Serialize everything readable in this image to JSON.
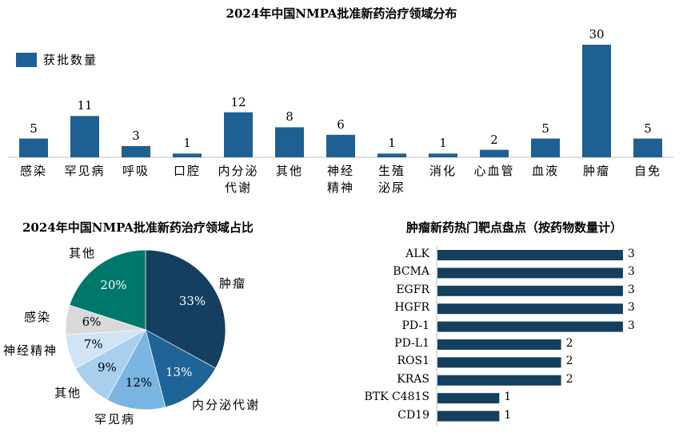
{
  "chart_data": [
    {
      "type": "bar",
      "title": "2024年中国NMPA批准新药治疗领域分布",
      "legend": "获批数量",
      "categories": [
        "感染",
        "罕见病",
        "呼吸",
        "口腔",
        "内分泌代谢",
        "其他",
        "神经精神",
        "生殖泌尿",
        "消化",
        "心血管",
        "血液",
        "肿瘤",
        "自免"
      ],
      "category_lines": [
        [
          "感染"
        ],
        [
          "罕见病"
        ],
        [
          "呼吸"
        ],
        [
          "口腔"
        ],
        [
          "内分泌",
          "代谢"
        ],
        [
          "其他"
        ],
        [
          "神经",
          "精神"
        ],
        [
          "生殖",
          "泌尿"
        ],
        [
          "消化"
        ],
        [
          "心血管"
        ],
        [
          "血液"
        ],
        [
          "肿瘤"
        ],
        [
          "自免"
        ]
      ],
      "values": [
        5,
        11,
        3,
        1,
        12,
        8,
        6,
        1,
        1,
        2,
        5,
        30,
        5
      ],
      "color": "#1f6093"
    },
    {
      "type": "pie",
      "title": "2024年中国NMPA批准新药治疗领域占比",
      "slices": [
        {
          "label": "肿瘤",
          "value": 33,
          "text": "33%",
          "color": "#153f61",
          "textColor": "#fff"
        },
        {
          "label": "内分泌代谢",
          "value": 13,
          "text": "13%",
          "color": "#1f6496",
          "textColor": "#fff"
        },
        {
          "label": "罕见病",
          "value": 12,
          "text": "12%",
          "color": "#7ab4e0",
          "textColor": "#000"
        },
        {
          "label": "其他",
          "value": 9,
          "text": "9%",
          "color": "#a9cfee",
          "textColor": "#000"
        },
        {
          "label": "神经精神",
          "value": 7,
          "text": "7%",
          "color": "#d0e4f5",
          "textColor": "#000"
        },
        {
          "label": "感染",
          "value": 6,
          "text": "6%",
          "color": "#d9d9d9",
          "textColor": "#000"
        },
        {
          "label": "其他",
          "value": 20,
          "text": "20%",
          "color": "#00776b",
          "textColor": "#fff"
        }
      ]
    },
    {
      "type": "bar",
      "orientation": "horizontal",
      "title": "肿瘤新药热门靶点盘点（按药物数量计）",
      "categories": [
        "ALK",
        "BCMA",
        "EGFR",
        "HGFR",
        "PD-1",
        "PD-L1",
        "ROS1",
        "KRAS",
        "BTK C481S",
        "CD19"
      ],
      "values": [
        3,
        3,
        3,
        3,
        3,
        2,
        2,
        2,
        1,
        1
      ],
      "color": "#143f5e"
    }
  ]
}
